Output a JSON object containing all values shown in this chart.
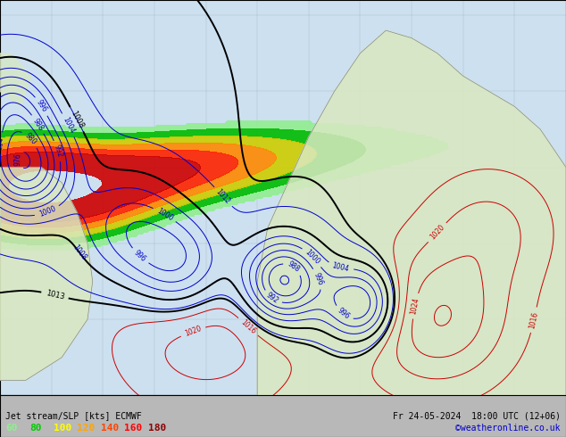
{
  "title_left": "Jet stream/SLP [kts] ECMWF",
  "title_right": "Fr 24-05-2024  18:00 UTC (12+06)",
  "credit": "©weatheronline.co.uk",
  "legend_values": [
    60,
    80,
    100,
    120,
    140,
    160,
    180
  ],
  "legend_colors": [
    "#90ee90",
    "#00cc00",
    "#ffff00",
    "#ffa500",
    "#ff4500",
    "#ff0000",
    "#8b0000"
  ],
  "map_bg": "#cce0f0",
  "contour_slp_color": "#0000cc",
  "contour_slp_bold_color": "#000000",
  "contour_red_color": "#cc0000",
  "jet_colors": [
    "#90ee90",
    "#00bb00",
    "#cccc00",
    "#ff8800",
    "#ff2200",
    "#cc0000"
  ],
  "figsize": [
    6.34,
    4.9
  ],
  "dpi": 100
}
